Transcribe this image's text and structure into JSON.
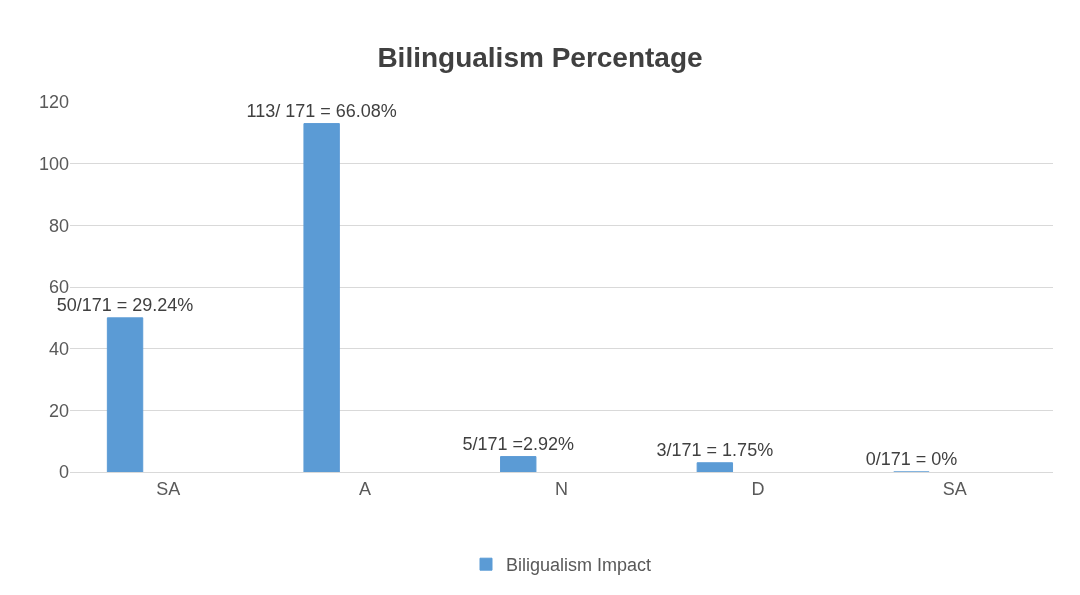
{
  "chart_data": {
    "type": "bar",
    "title": "Bilingualism Percentage",
    "categories": [
      "SA",
      "A",
      "N",
      "D",
      "SA"
    ],
    "series": [
      {
        "name": "Biligualism Impact",
        "color": "#5b9bd5",
        "values": [
          50,
          113,
          5,
          3,
          0
        ],
        "value_labels": [
          "50/171 = 29.24%",
          "113/ 171 = 66.08%",
          "5/171 =2.92%",
          "3/171 = 1.75%",
          "0/171 = 0%"
        ]
      }
    ],
    "ylim": [
      0,
      120
    ],
    "yticks": [
      0,
      20,
      40,
      60,
      80,
      100,
      120
    ],
    "grid": "y",
    "legend": "bottom"
  }
}
